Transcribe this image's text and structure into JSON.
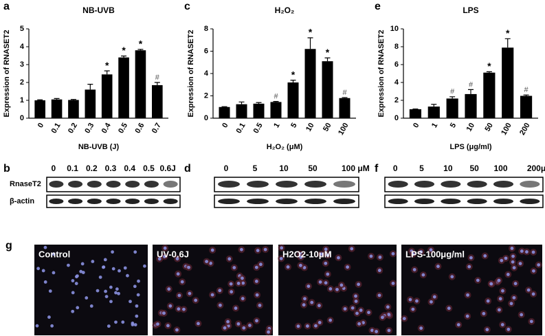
{
  "chart_data": [
    {
      "type": "bar",
      "panel_label": "a",
      "title": "NB-UVB",
      "xlabel": "NB-UVB (J)",
      "ylabel": "Expression of RNASET2",
      "categories": [
        "0",
        "0.1",
        "0.2",
        "0.3",
        "0.4",
        "0.5",
        "0.6",
        "0.7"
      ],
      "values": [
        1,
        1.05,
        1.02,
        1.6,
        2.45,
        3.4,
        3.8,
        1.85
      ],
      "errors": [
        0.03,
        0.05,
        0.03,
        0.3,
        0.2,
        0.08,
        0.05,
        0.15
      ],
      "markers": [
        null,
        null,
        null,
        null,
        "*",
        "*",
        "*",
        "#"
      ],
      "color": "#000000",
      "ylim": [
        0,
        5
      ],
      "yticks": [
        0,
        1,
        2,
        3,
        4,
        5
      ]
    },
    {
      "type": "bar",
      "panel_label": "c",
      "title": "H₂O₂",
      "xlabel": "H₂O₂ (μM)",
      "ylabel": "Expression of RNASET2",
      "categories": [
        "0",
        "0.1",
        "0.5",
        "1",
        "5",
        "10",
        "50",
        "100"
      ],
      "values": [
        1,
        1.25,
        1.3,
        1.45,
        3.2,
        6.2,
        5.1,
        1.8
      ],
      "errors": [
        0.03,
        0.2,
        0.1,
        0.05,
        0.2,
        1.0,
        0.3,
        0.05
      ],
      "markers": [
        null,
        null,
        null,
        "#",
        "*",
        "*",
        "*",
        "#"
      ],
      "color": "#000000",
      "ylim": [
        0,
        8
      ],
      "yticks": [
        0,
        2,
        4,
        6,
        8
      ]
    },
    {
      "type": "bar",
      "panel_label": "e",
      "title": "LPS",
      "xlabel": "LPS (μg/ml)",
      "ylabel": "Expression of RNASET2",
      "categories": [
        "0",
        "1",
        "5",
        "10",
        "50",
        "100",
        "200"
      ],
      "values": [
        1,
        1.3,
        2.2,
        2.7,
        5.1,
        7.9,
        2.5
      ],
      "errors": [
        0.03,
        0.25,
        0.2,
        0.5,
        0.1,
        1.0,
        0.1
      ],
      "markers": [
        null,
        null,
        "#",
        "#",
        "*",
        "*",
        "#"
      ],
      "color": "#000000",
      "ylim": [
        0,
        10
      ],
      "yticks": [
        0,
        2,
        4,
        6,
        8,
        10
      ]
    }
  ],
  "blots": [
    {
      "panel_label": "b",
      "lanes": [
        "0",
        "0.1",
        "0.2",
        "0.3",
        "0.4",
        "0.5",
        "0.6J"
      ],
      "rows": [
        "RnaseT2",
        "β-actin"
      ]
    },
    {
      "panel_label": "d",
      "lanes": [
        "0",
        "5",
        "10",
        "50",
        "100 μM"
      ]
    },
    {
      "panel_label": "f",
      "lanes": [
        "0",
        "5",
        "10",
        "50",
        "100",
        "200μg/ml"
      ]
    }
  ],
  "images": {
    "panel_label": "g",
    "panels": [
      "Control",
      "UV-0.6J",
      "H2O2-10μM",
      "LPS-100μg/ml"
    ]
  }
}
